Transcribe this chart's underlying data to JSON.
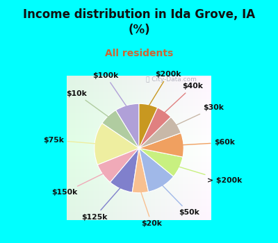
{
  "title": "Income distribution in Ida Grove, IA\n(%)",
  "subtitle": "All residents",
  "title_color": "#111111",
  "subtitle_color": "#cc6633",
  "background_color": "#00ffff",
  "labels": [
    "$100k",
    "$10k",
    "$75k",
    "$150k",
    "$125k",
    "$20k",
    "$50k",
    "> $200k",
    "$60k",
    "$30k",
    "$40k",
    "$200k"
  ],
  "values": [
    9,
    7,
    16,
    8,
    9,
    6,
    11,
    8,
    9,
    7,
    6,
    7
  ],
  "colors": [
    "#b0a0d8",
    "#b0cca0",
    "#eeeea0",
    "#f0aab8",
    "#8080cc",
    "#f8c090",
    "#a0b8e8",
    "#c8f080",
    "#f0a060",
    "#c8b8a8",
    "#e08080",
    "#c89820"
  ],
  "startangle": 90,
  "figsize": [
    4.0,
    3.5
  ],
  "dpi": 100
}
